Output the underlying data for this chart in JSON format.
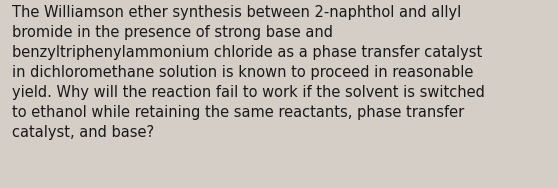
{
  "lines": [
    "The Williamson ether synthesis between 2-naphthol and allyl",
    "bromide in the presence of strong base and",
    "benzyltriphenylammonium chloride as a phase transfer catalyst",
    "in dichloromethane solution is known to proceed in reasonable",
    "yield. Why will the reaction fail to work if the solvent is switched",
    "to ethanol while retaining the same reactants, phase transfer",
    "catalyst, and base?"
  ],
  "background_color": "#d4cec6",
  "text_color": "#1a1a1a",
  "font_size": 10.5,
  "fig_width": 5.58,
  "fig_height": 1.88
}
